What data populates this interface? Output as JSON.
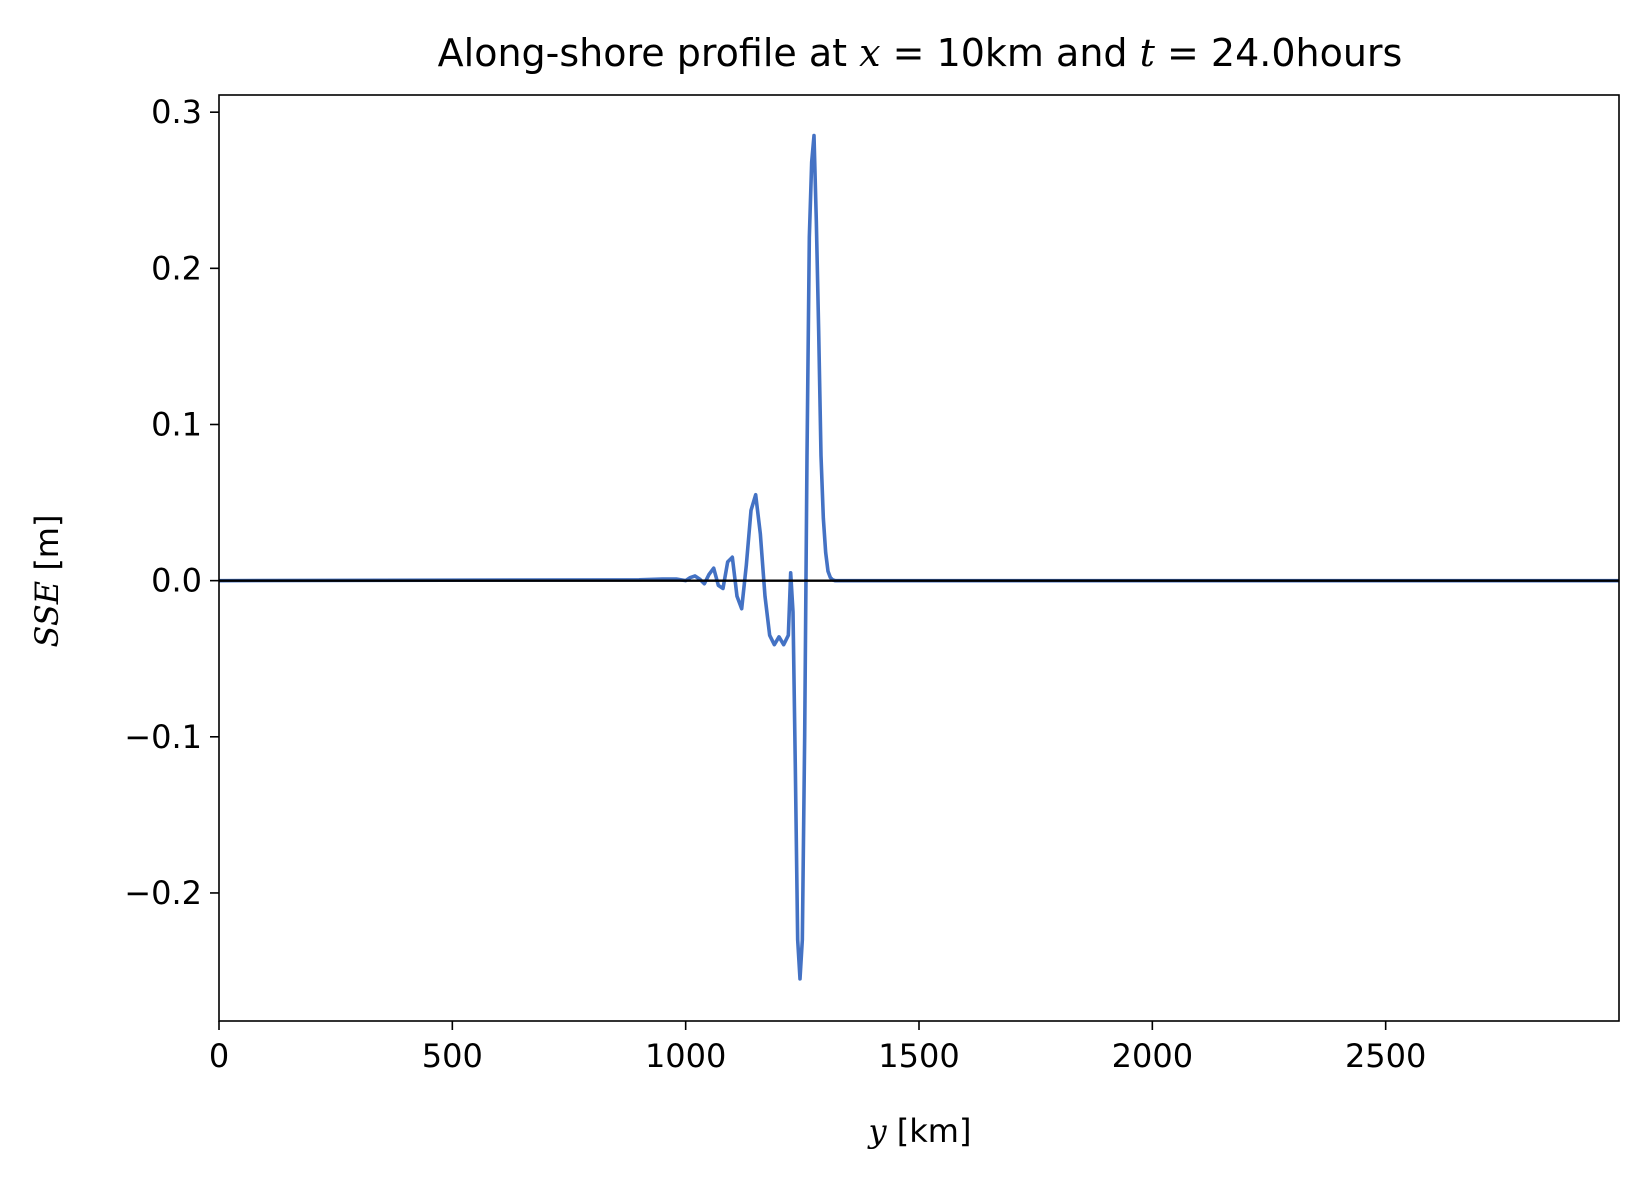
{
  "chart_data": {
    "type": "line",
    "title": {
      "prefix": "Along-shore profile at ",
      "var1": "x",
      "eq1": " = 10km and ",
      "var2": "t",
      "eq2": " = 24.0hours"
    },
    "xlabel": {
      "var": "y",
      "unit": " [km]"
    },
    "ylabel": {
      "var": "SSE",
      "unit": " [m]"
    },
    "xlim": [
      0,
      3000
    ],
    "ylim": [
      -0.282,
      0.311
    ],
    "xticks": [
      0,
      500,
      1000,
      1500,
      2000,
      2500
    ],
    "xtick_labels": [
      "0",
      "500",
      "1000",
      "1500",
      "2000",
      "2500"
    ],
    "yticks": [
      -0.2,
      -0.1,
      0.0,
      0.1,
      0.2,
      0.3
    ],
    "ytick_labels": [
      "−0.2",
      "−0.1",
      "0.0",
      "0.1",
      "0.2",
      "0.3"
    ],
    "grid": false,
    "legend": "none",
    "baseline": 0.0,
    "series": [
      {
        "color": "#4472c4",
        "x": [
          0,
          900,
          950,
          980,
          1000,
          1010,
          1020,
          1030,
          1040,
          1050,
          1060,
          1070,
          1080,
          1090,
          1100,
          1110,
          1120,
          1130,
          1140,
          1150,
          1160,
          1170,
          1180,
          1190,
          1200,
          1210,
          1220,
          1225,
          1230,
          1235,
          1240,
          1245,
          1250,
          1255,
          1260,
          1265,
          1270,
          1275,
          1280,
          1285,
          1290,
          1295,
          1300,
          1305,
          1310,
          1315,
          1320,
          1330,
          1350,
          1400,
          3000
        ],
        "y": [
          0.0,
          0.0005,
          0.001,
          0.001,
          0.0,
          0.002,
          0.003,
          0.001,
          -0.002,
          0.004,
          0.008,
          -0.003,
          -0.005,
          0.012,
          0.015,
          -0.01,
          -0.018,
          0.01,
          0.045,
          0.055,
          0.03,
          -0.01,
          -0.035,
          -0.041,
          -0.036,
          -0.041,
          -0.035,
          0.005,
          -0.02,
          -0.12,
          -0.23,
          -0.255,
          -0.23,
          -0.1,
          0.08,
          0.22,
          0.268,
          0.285,
          0.23,
          0.16,
          0.08,
          0.04,
          0.018,
          0.006,
          0.002,
          0.0005,
          0.0,
          0.0,
          0.0,
          0.0,
          0.0
        ]
      }
    ]
  }
}
